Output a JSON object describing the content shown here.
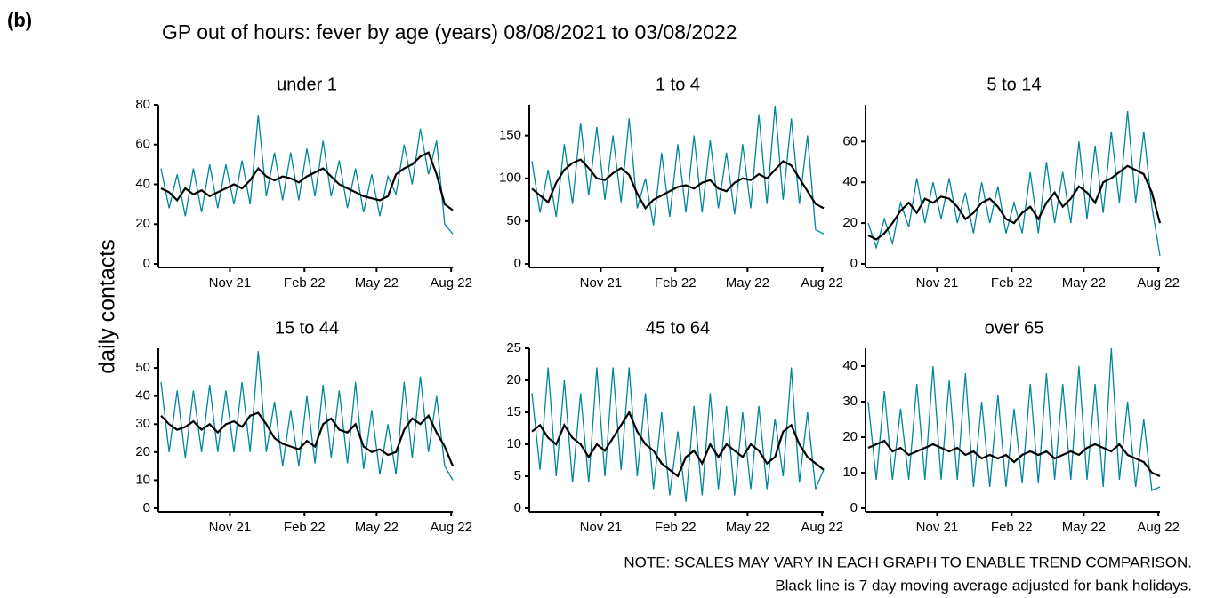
{
  "label": "(b)",
  "title": "GP out of hours: fever by age (years) 08/08/2021 to 03/08/2022",
  "ylabel": "daily contacts",
  "notes": [
    "NOTE: SCALES MAY VARY IN EACH GRAPH TO ENABLE TREND COMPARISON.",
    "Black line is 7 day moving average adjusted for bank holidays."
  ],
  "chart_data": [
    {
      "type": "line",
      "title": "under 1",
      "x": [
        0,
        10,
        20,
        30,
        40,
        50,
        60,
        70,
        80,
        90,
        100,
        110,
        120,
        130,
        140,
        150,
        160,
        170,
        180,
        190,
        200,
        210,
        220,
        230,
        240,
        250,
        260,
        270,
        280,
        290,
        300,
        310,
        320,
        330,
        340,
        350,
        360
      ],
      "xlim": [
        0,
        360
      ],
      "xticks": [
        {
          "value": 85,
          "label": "Nov 21"
        },
        {
          "value": 177,
          "label": "Feb 22"
        },
        {
          "value": 266,
          "label": "May 22"
        },
        {
          "value": 358,
          "label": "Aug 22"
        }
      ],
      "ylim": [
        0,
        80
      ],
      "yticks": [
        0,
        20,
        40,
        60,
        80
      ],
      "series": [
        {
          "color": "#00859b",
          "values": [
            48,
            28,
            45,
            24,
            48,
            26,
            50,
            28,
            50,
            30,
            52,
            30,
            75,
            34,
            56,
            32,
            56,
            32,
            58,
            34,
            62,
            34,
            52,
            28,
            48,
            26,
            45,
            24,
            44,
            35,
            60,
            40,
            68,
            45,
            62,
            20,
            15
          ]
        },
        {
          "color": "#000000",
          "values": [
            38,
            36,
            32,
            38,
            35,
            37,
            34,
            36,
            38,
            40,
            38,
            42,
            48,
            44,
            42,
            44,
            43,
            41,
            44,
            46,
            48,
            44,
            40,
            38,
            36,
            34,
            33,
            32,
            34,
            45,
            48,
            50,
            54,
            56,
            45,
            30,
            27
          ]
        }
      ]
    },
    {
      "type": "line",
      "title": "1 to 4",
      "x": [
        0,
        10,
        20,
        30,
        40,
        50,
        60,
        70,
        80,
        90,
        100,
        110,
        120,
        130,
        140,
        150,
        160,
        170,
        180,
        190,
        200,
        210,
        220,
        230,
        240,
        250,
        260,
        270,
        280,
        290,
        300,
        310,
        320,
        330,
        340,
        350,
        360
      ],
      "xlim": [
        0,
        360
      ],
      "xticks": [
        {
          "value": 85,
          "label": "Nov 21"
        },
        {
          "value": 177,
          "label": "Feb 22"
        },
        {
          "value": 266,
          "label": "May 22"
        },
        {
          "value": 358,
          "label": "Aug 22"
        }
      ],
      "ylim": [
        0,
        186
      ],
      "yticks": [
        0,
        50,
        100,
        150
      ],
      "series": [
        {
          "color": "#00859b",
          "values": [
            120,
            60,
            110,
            55,
            140,
            70,
            165,
            80,
            160,
            75,
            150,
            72,
            170,
            65,
            100,
            45,
            130,
            55,
            140,
            60,
            150,
            60,
            145,
            65,
            130,
            58,
            140,
            65,
            175,
            70,
            185,
            75,
            170,
            70,
            150,
            40,
            35
          ]
        },
        {
          "color": "#000000",
          "values": [
            88,
            80,
            72,
            95,
            110,
            118,
            122,
            112,
            100,
            98,
            106,
            112,
            104,
            82,
            65,
            75,
            80,
            85,
            90,
            92,
            88,
            95,
            98,
            88,
            85,
            95,
            100,
            98,
            105,
            100,
            110,
            120,
            115,
            100,
            85,
            70,
            65
          ]
        }
      ]
    },
    {
      "type": "line",
      "title": "5 to 14",
      "x": [
        0,
        10,
        20,
        30,
        40,
        50,
        60,
        70,
        80,
        90,
        100,
        110,
        120,
        130,
        140,
        150,
        160,
        170,
        180,
        190,
        200,
        210,
        220,
        230,
        240,
        250,
        260,
        270,
        280,
        290,
        300,
        310,
        320,
        330,
        340,
        350,
        360
      ],
      "xlim": [
        0,
        360
      ],
      "xticks": [
        {
          "value": 85,
          "label": "Nov 21"
        },
        {
          "value": 177,
          "label": "Feb 22"
        },
        {
          "value": 266,
          "label": "May 22"
        },
        {
          "value": 358,
          "label": "Aug 22"
        }
      ],
      "ylim": [
        0,
        78
      ],
      "yticks": [
        0,
        20,
        40,
        60
      ],
      "series": [
        {
          "color": "#00859b",
          "values": [
            20,
            8,
            22,
            10,
            30,
            18,
            42,
            20,
            40,
            22,
            42,
            20,
            35,
            15,
            40,
            20,
            38,
            15,
            30,
            15,
            45,
            15,
            50,
            20,
            45,
            20,
            60,
            22,
            58,
            25,
            65,
            30,
            75,
            30,
            65,
            28,
            4
          ]
        },
        {
          "color": "#000000",
          "values": [
            14,
            12,
            15,
            20,
            26,
            30,
            25,
            32,
            30,
            33,
            32,
            28,
            22,
            25,
            30,
            32,
            28,
            22,
            20,
            25,
            28,
            22,
            30,
            35,
            28,
            32,
            38,
            35,
            30,
            40,
            42,
            45,
            48,
            46,
            44,
            35,
            20
          ]
        }
      ]
    },
    {
      "type": "line",
      "title": "15 to 44",
      "x": [
        0,
        10,
        20,
        30,
        40,
        50,
        60,
        70,
        80,
        90,
        100,
        110,
        120,
        130,
        140,
        150,
        160,
        170,
        180,
        190,
        200,
        210,
        220,
        230,
        240,
        250,
        260,
        270,
        280,
        290,
        300,
        310,
        320,
        330,
        340,
        350,
        360
      ],
      "xlim": [
        0,
        360
      ],
      "xticks": [
        {
          "value": 85,
          "label": "Nov 21"
        },
        {
          "value": 177,
          "label": "Feb 22"
        },
        {
          "value": 266,
          "label": "May 22"
        },
        {
          "value": 358,
          "label": "Aug 22"
        }
      ],
      "ylim": [
        0,
        57
      ],
      "yticks": [
        0,
        10,
        20,
        30,
        40,
        50
      ],
      "series": [
        {
          "color": "#00859b",
          "values": [
            45,
            20,
            42,
            18,
            42,
            20,
            44,
            20,
            42,
            20,
            45,
            20,
            56,
            20,
            38,
            15,
            35,
            15,
            40,
            16,
            44,
            18,
            42,
            16,
            45,
            14,
            35,
            12,
            30,
            12,
            45,
            18,
            47,
            20,
            40,
            15,
            10
          ]
        },
        {
          "color": "#000000",
          "values": [
            33,
            30,
            28,
            29,
            31,
            28,
            30,
            27,
            30,
            31,
            29,
            33,
            34,
            30,
            25,
            23,
            22,
            21,
            24,
            22,
            30,
            32,
            28,
            27,
            30,
            22,
            20,
            21,
            19,
            20,
            28,
            32,
            30,
            33,
            27,
            22,
            15
          ]
        }
      ]
    },
    {
      "type": "line",
      "title": "45 to 64",
      "x": [
        0,
        10,
        20,
        30,
        40,
        50,
        60,
        70,
        80,
        90,
        100,
        110,
        120,
        130,
        140,
        150,
        160,
        170,
        180,
        190,
        200,
        210,
        220,
        230,
        240,
        250,
        260,
        270,
        280,
        290,
        300,
        310,
        320,
        330,
        340,
        350,
        360
      ],
      "xlim": [
        0,
        360
      ],
      "xticks": [
        {
          "value": 85,
          "label": "Nov 21"
        },
        {
          "value": 177,
          "label": "Feb 22"
        },
        {
          "value": 266,
          "label": "May 22"
        },
        {
          "value": 358,
          "label": "Aug 22"
        }
      ],
      "ylim": [
        0,
        25
      ],
      "yticks": [
        0,
        5,
        10,
        15,
        20,
        25
      ],
      "series": [
        {
          "color": "#00859b",
          "values": [
            18,
            6,
            22,
            5,
            20,
            4,
            18,
            4,
            22,
            5,
            22,
            6,
            22,
            5,
            18,
            3,
            15,
            2,
            12,
            1,
            16,
            2,
            18,
            3,
            16,
            2,
            15,
            3,
            16,
            3,
            14,
            5,
            22,
            4,
            15,
            3,
            6
          ]
        },
        {
          "color": "#000000",
          "values": [
            12,
            13,
            11,
            10,
            13,
            11,
            10,
            8,
            10,
            9,
            11,
            13,
            15,
            12,
            10,
            9,
            7,
            6,
            5,
            8,
            9,
            7,
            10,
            8,
            10,
            9,
            8,
            10,
            9,
            7,
            8,
            12,
            13,
            10,
            8,
            7,
            6
          ]
        }
      ]
    },
    {
      "type": "line",
      "title": "over 65",
      "x": [
        0,
        10,
        20,
        30,
        40,
        50,
        60,
        70,
        80,
        90,
        100,
        110,
        120,
        130,
        140,
        150,
        160,
        170,
        180,
        190,
        200,
        210,
        220,
        230,
        240,
        250,
        260,
        270,
        280,
        290,
        300,
        310,
        320,
        330,
        340,
        350,
        360
      ],
      "xlim": [
        0,
        360
      ],
      "xticks": [
        {
          "value": 85,
          "label": "Nov 21"
        },
        {
          "value": 177,
          "label": "Feb 22"
        },
        {
          "value": 266,
          "label": "May 22"
        },
        {
          "value": 358,
          "label": "Aug 22"
        }
      ],
      "ylim": [
        0,
        45
      ],
      "yticks": [
        0,
        10,
        20,
        30,
        40
      ],
      "series": [
        {
          "color": "#00859b",
          "values": [
            30,
            8,
            33,
            8,
            28,
            8,
            35,
            8,
            40,
            8,
            36,
            8,
            38,
            6,
            30,
            6,
            32,
            6,
            28,
            7,
            35,
            7,
            38,
            8,
            35,
            8,
            40,
            8,
            35,
            6,
            45,
            8,
            30,
            6,
            25,
            5,
            6
          ]
        },
        {
          "color": "#000000",
          "values": [
            17,
            18,
            19,
            16,
            17,
            15,
            16,
            17,
            18,
            17,
            16,
            17,
            15,
            16,
            14,
            15,
            14,
            15,
            13,
            15,
            16,
            15,
            16,
            14,
            15,
            16,
            15,
            17,
            18,
            17,
            16,
            18,
            15,
            14,
            13,
            10,
            9
          ]
        }
      ]
    }
  ]
}
